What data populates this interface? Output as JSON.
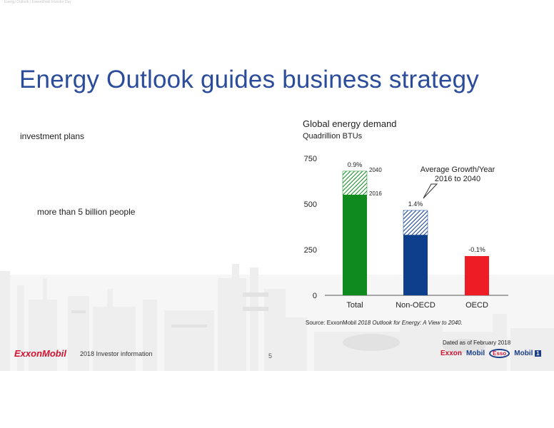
{
  "header": {
    "faint_text": "Energy Outlook | ExxonMobil Investor Day"
  },
  "title": "Energy Outlook guides business strategy",
  "body": {
    "line1": "investment plans",
    "line2": "more than 5 billion people"
  },
  "chart": {
    "title": "Global energy demand",
    "subtitle": "Quadrillion BTUs",
    "annotation_line1": "Average Growth/Year",
    "annotation_line2": "2016 to 2040",
    "label_2040": "2040",
    "label_2016": "2016",
    "source_prefix": "Source: ExxonMobil ",
    "source_italic": "2018 Outlook for Energy: A View to 2040."
  },
  "chart_data": {
    "type": "bar",
    "categories": [
      "Total",
      "Non-OECD",
      "OECD"
    ],
    "series": [
      {
        "name": "2016",
        "values": [
          550,
          330,
          215
        ]
      },
      {
        "name": "2040",
        "values": [
          680,
          465,
          210
        ]
      }
    ],
    "growth_labels": [
      "0.9%",
      "1.4%",
      "-0.1%"
    ],
    "ylim": [
      0,
      750
    ],
    "yticks": [
      0,
      250,
      500,
      750
    ],
    "colors": {
      "Total": "#0e8a1f",
      "Non-OECD": "#0d3f8c",
      "OECD": "#ee1c25"
    }
  },
  "footer": {
    "logo": "ExxonMobil",
    "info": "2018 Investor information",
    "page_number": "5",
    "dated": "Dated as of February 2018",
    "brand_exxon": "Exxon",
    "brand_mobil": "Mobil",
    "brand_esso": "Esso",
    "brand_mobil1": "Mobil",
    "brand_mobil1_num": "1"
  }
}
